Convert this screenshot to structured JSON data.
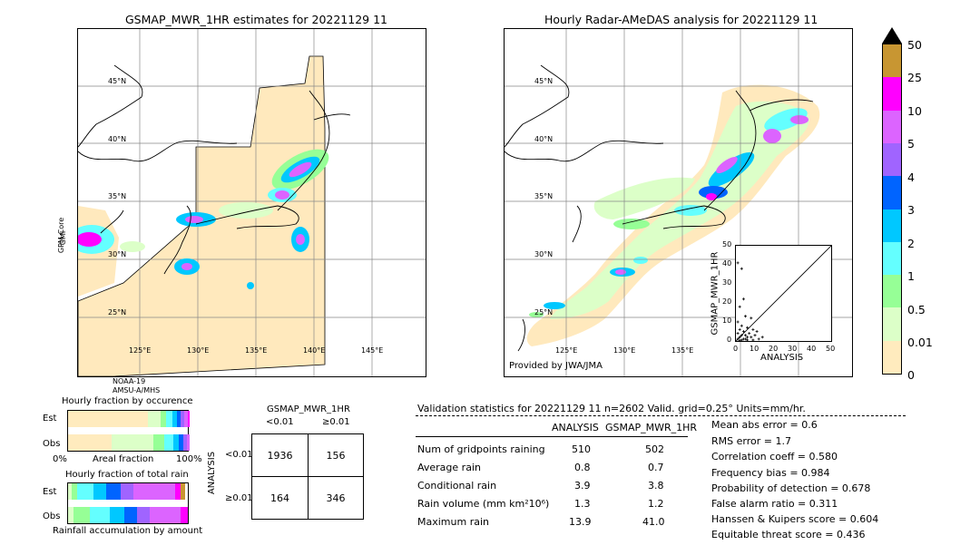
{
  "left_panel": {
    "title": "GSMAP_MWR_1HR estimates for 20221129 11",
    "lat_labels": [
      "45°N",
      "40°N",
      "35°N",
      "30°N",
      "25°N"
    ],
    "lon_labels": [
      "125°E",
      "130°E",
      "135°E",
      "140°E",
      "145°E"
    ],
    "side_label_1": "GPM-Core",
    "side_label_2": "GMI",
    "bottom_label_1": "NOAA-19",
    "bottom_label_2": "AMSU-A/MHS"
  },
  "right_panel": {
    "title": "Hourly Radar-AMeDAS analysis for 20221129 11",
    "lat_labels": [
      "45°N",
      "40°N",
      "35°N",
      "30°N",
      "25°N"
    ],
    "lon_labels": [
      "125°E",
      "130°E",
      "135°E"
    ],
    "credit": "Provided by JWA/JMA"
  },
  "colorbar": {
    "ticks": [
      "50",
      "25",
      "10",
      "5",
      "4",
      "3",
      "2",
      "1",
      "0.5",
      "0.01",
      "0"
    ],
    "colors": [
      "#c89632",
      "#ff00ff",
      "#dc64ff",
      "#a064ff",
      "#0064ff",
      "#00c8ff",
      "#64ffff",
      "#96ff96",
      "#dcffc8",
      "#ffebbe"
    ],
    "over_color": "#000000"
  },
  "scatter": {
    "ylabel": "GSMAP_MWR_1HR",
    "xlabel": "ANALYSIS",
    "ticks": [
      "0",
      "10",
      "20",
      "30",
      "40",
      "50"
    ]
  },
  "fraction_occurrence": {
    "title": "Hourly fraction by occurence",
    "row_labels": [
      "Est",
      "Obs"
    ],
    "axis_left": "0%",
    "axis_mid": "Areal fraction",
    "axis_right": "100%"
  },
  "fraction_total": {
    "title": "Hourly fraction of total rain",
    "row_labels": [
      "Est",
      "Obs"
    ],
    "axis_caption": "Rainfall accumulation by amount"
  },
  "contingency": {
    "header": "GSMAP_MWR_1HR",
    "col_labels": [
      "<0.01",
      "≥0.01"
    ],
    "row_axis": "ANALYSIS",
    "row_labels": [
      "<0.01",
      "≥0.01"
    ],
    "cells": [
      [
        "1936",
        "156"
      ],
      [
        "164",
        "346"
      ]
    ]
  },
  "validation": {
    "header": "Validation statistics for 20221129 11  n=2602 Valid. grid=0.25° Units=mm/hr.",
    "col_analysis": "ANALYSIS",
    "col_gsmap": "GSMAP_MWR_1HR",
    "rows": [
      {
        "label": "Num of gridpoints raining",
        "analysis": "510",
        "gsmap": "502"
      },
      {
        "label": "Average rain",
        "analysis": "0.8",
        "gsmap": "0.7"
      },
      {
        "label": "Conditional rain",
        "analysis": "3.9",
        "gsmap": "3.8"
      },
      {
        "label": "Rain volume (mm km²10⁶)",
        "analysis": "1.3",
        "gsmap": "1.2"
      },
      {
        "label": "Maximum rain",
        "analysis": "13.9",
        "gsmap": "41.0"
      }
    ],
    "scores": [
      "Mean abs error =    0.6",
      "RMS error =    1.7",
      "Correlation coeff =  0.580",
      "Frequency bias =  0.984",
      "Probability of detection =  0.678",
      "False alarm ratio =  0.311",
      "Hanssen & Kuipers score =  0.604",
      "Equitable threat score =  0.436"
    ]
  },
  "chart_data": {
    "type": "scatter",
    "xlabel": "ANALYSIS",
    "ylabel": "GSMAP_MWR_1HR",
    "xlim": [
      0,
      50
    ],
    "ylim": [
      0,
      50
    ],
    "points": [
      [
        1,
        41
      ],
      [
        3,
        38
      ],
      [
        4,
        22
      ],
      [
        2,
        18
      ],
      [
        5,
        13
      ],
      [
        8,
        12
      ],
      [
        1,
        10
      ],
      [
        3,
        8
      ],
      [
        6,
        7
      ],
      [
        2,
        6
      ],
      [
        9,
        6
      ],
      [
        11,
        5
      ],
      [
        4,
        5
      ],
      [
        1,
        4
      ],
      [
        7,
        4
      ],
      [
        3,
        3
      ],
      [
        5,
        3
      ],
      [
        10,
        3
      ],
      [
        2,
        2
      ],
      [
        6,
        2
      ],
      [
        8,
        2
      ],
      [
        1,
        1
      ],
      [
        4,
        1
      ],
      [
        12,
        1
      ],
      [
        3,
        0.5
      ],
      [
        6,
        0.5
      ],
      [
        9,
        0.5
      ],
      [
        13.9,
        2
      ],
      [
        2,
        0.3
      ],
      [
        5,
        1
      ]
    ]
  }
}
